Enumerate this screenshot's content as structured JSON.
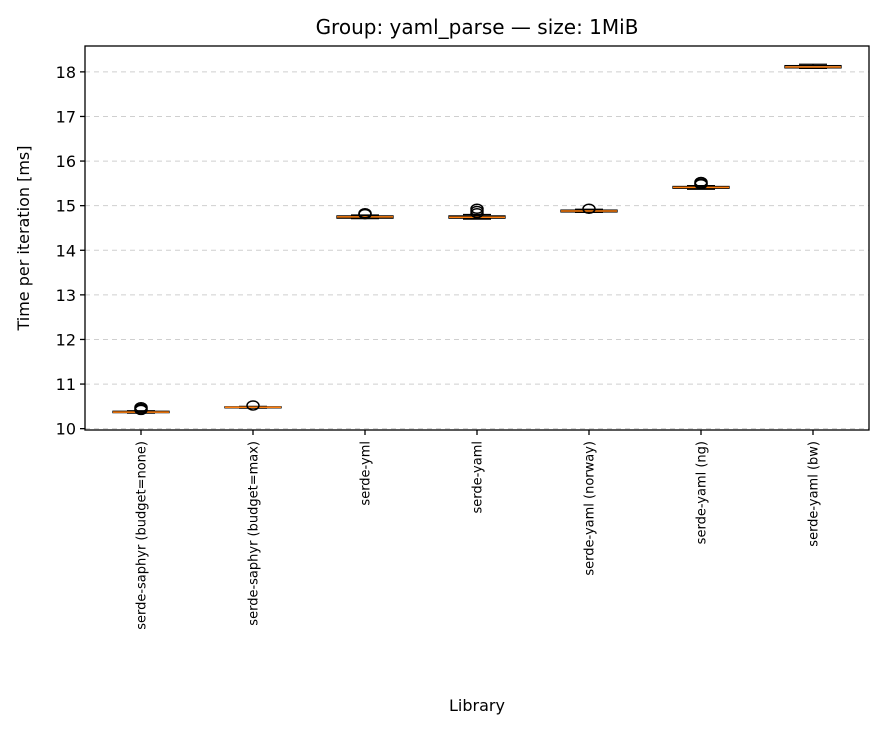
{
  "chart_data": {
    "type": "box",
    "title": "Group: yaml_parse — size: 1MiB",
    "xlabel": "Library",
    "ylabel": "Time per iteration [ms]",
    "ylim": [
      9.97,
      18.58
    ],
    "yticks": [
      10,
      11,
      12,
      13,
      14,
      15,
      16,
      17,
      18
    ],
    "grid": "y-dashed",
    "colors": {
      "median": "#ff7f0e",
      "box": "#000000",
      "grid": "#b0b0b0"
    },
    "categories": [
      "serde-saphyr (budget=none)",
      "serde-saphyr (budget=max)",
      "serde-yml",
      "serde-yaml",
      "serde-yaml (norway)",
      "serde-yaml (ng)",
      "serde-yaml (bw)"
    ],
    "boxes": [
      {
        "whislo": 10.35,
        "q1": 10.36,
        "med": 10.37,
        "q3": 10.39,
        "whishi": 10.4,
        "fliers": [
          10.42,
          10.45,
          10.48
        ]
      },
      {
        "whislo": 10.46,
        "q1": 10.47,
        "med": 10.48,
        "q3": 10.49,
        "whishi": 10.5,
        "fliers": [
          10.52
        ]
      },
      {
        "whislo": 14.71,
        "q1": 14.72,
        "med": 14.75,
        "q3": 14.77,
        "whishi": 14.79,
        "fliers": [
          14.81,
          14.83
        ]
      },
      {
        "whislo": 14.7,
        "q1": 14.72,
        "med": 14.74,
        "q3": 14.77,
        "whishi": 14.8,
        "fliers": [
          14.83,
          14.88,
          14.93
        ]
      },
      {
        "whislo": 14.85,
        "q1": 14.86,
        "med": 14.88,
        "q3": 14.9,
        "whishi": 14.92,
        "fliers": [
          14.93
        ]
      },
      {
        "whislo": 15.37,
        "q1": 15.39,
        "med": 15.41,
        "q3": 15.43,
        "whishi": 15.45,
        "fliers": [
          15.48,
          15.5,
          15.53
        ]
      },
      {
        "whislo": 18.08,
        "q1": 18.09,
        "med": 18.11,
        "q3": 18.14,
        "whishi": 18.17,
        "fliers": []
      }
    ]
  }
}
